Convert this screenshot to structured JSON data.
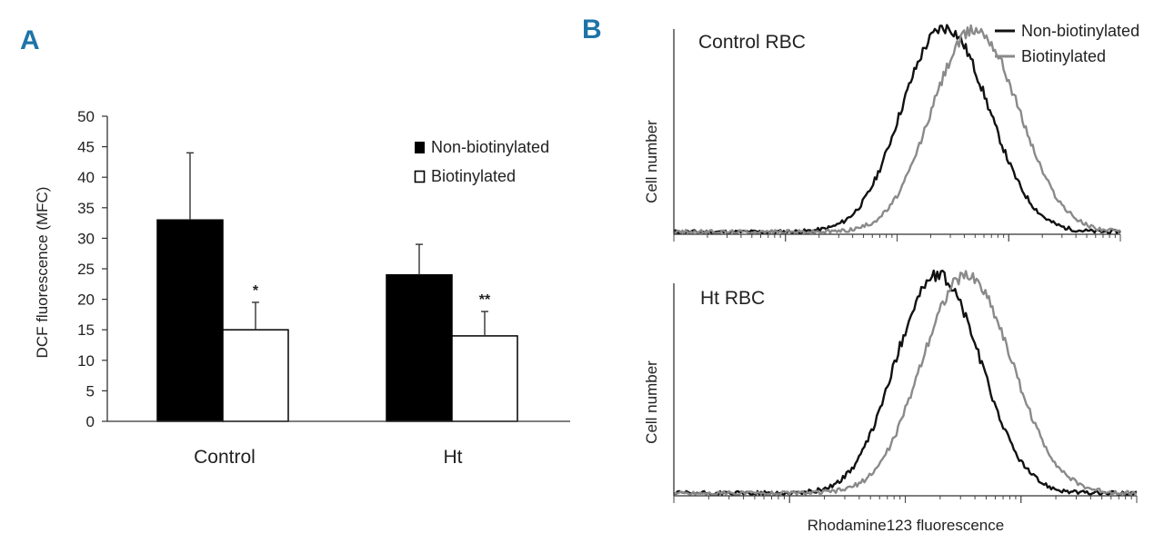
{
  "colors": {
    "panel_letter": "#1d74a8",
    "black_series": "#111111",
    "gray_series": "#8a8a8a",
    "axis": "#333333"
  },
  "panel_a": {
    "letter": "A"
  },
  "panel_b": {
    "letter": "B"
  },
  "chart_data": [
    {
      "type": "bar",
      "panel": "A",
      "categories": [
        "Control",
        "Ht"
      ],
      "ylabel": "DCF fluorescence (MFC)",
      "xlabel": "",
      "ylim": [
        0,
        50
      ],
      "yticks": [
        0,
        5,
        10,
        15,
        20,
        25,
        30,
        35,
        40,
        45,
        50
      ],
      "legend_position": "top-right",
      "series": [
        {
          "name": "Non-biotinylated",
          "values": [
            33,
            24
          ],
          "errors": [
            11,
            5
          ],
          "fill": "#000000"
        },
        {
          "name": "Biotinylated",
          "values": [
            15,
            14
          ],
          "errors": [
            4.5,
            4
          ],
          "fill": "#ffffff"
        }
      ],
      "annotations": [
        {
          "category": "Control",
          "series": "Biotinylated",
          "text": "*"
        },
        {
          "category": "Ht",
          "series": "Biotinylated",
          "text": "**"
        }
      ]
    },
    {
      "type": "line",
      "panel": "B",
      "subtype": "histogram",
      "title": "Control RBC",
      "ylabel": "Cell number",
      "xlabel": "Rhodamine123 fluorescence",
      "xscale": "log",
      "decades": 4,
      "legend_position": "top-right",
      "series": [
        {
          "name": "Non-biotinylated",
          "color": "#111111",
          "peak_decade": 2.45,
          "peak": 1.0,
          "spread": 0.38
        },
        {
          "name": "Biotinylated",
          "color": "#8a8a8a",
          "peak_decade": 2.72,
          "peak": 0.99,
          "spread": 0.38
        }
      ]
    },
    {
      "type": "line",
      "panel": "B",
      "subtype": "histogram",
      "title": "Ht RBC",
      "ylabel": "Cell number",
      "xlabel": "Rhodamine123 fluorescence",
      "xscale": "log",
      "decades": 4,
      "series": [
        {
          "name": "Non-biotinylated",
          "color": "#111111",
          "peak_decade": 2.3,
          "peak": 1.0,
          "spread": 0.36
        },
        {
          "name": "Biotinylated",
          "color": "#8a8a8a",
          "peak_decade": 2.55,
          "peak": 1.0,
          "spread": 0.38
        }
      ]
    }
  ]
}
